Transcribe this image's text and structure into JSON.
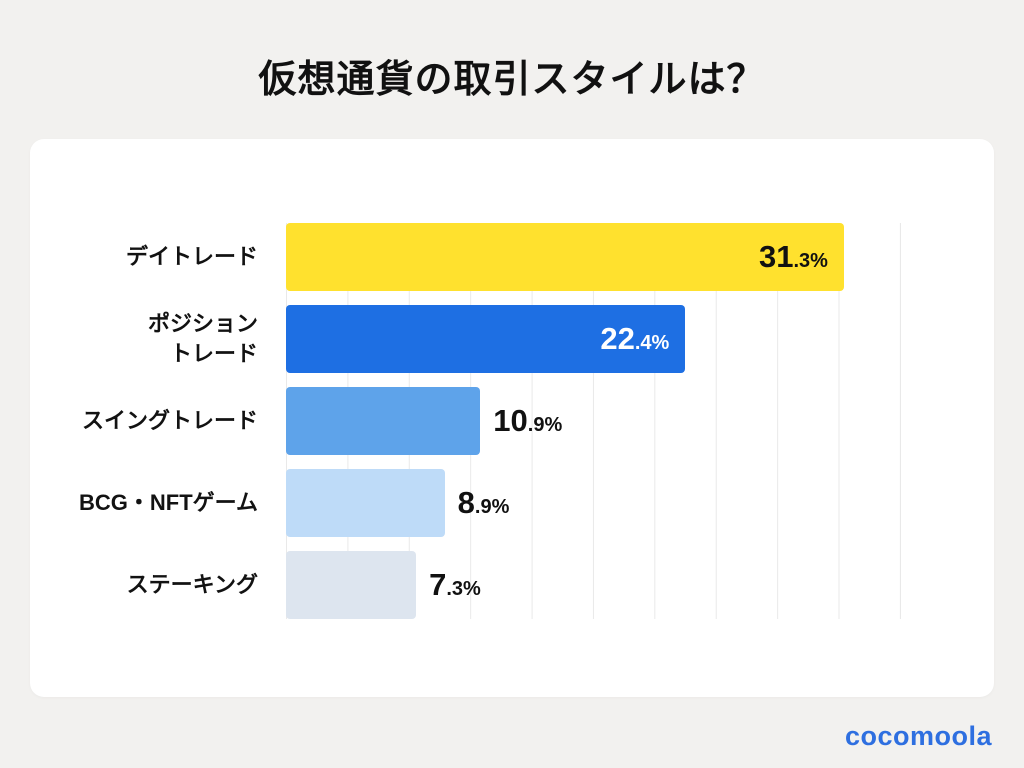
{
  "page": {
    "title": "仮想通貨の取引スタイルは？"
  },
  "brand": {
    "logo_text": "cocomoola",
    "logo_color": "#2e6fe0"
  },
  "chart_data": {
    "type": "bar",
    "orientation": "horizontal",
    "title": "仮想通貨の取引スタイルは？",
    "categories": [
      "デイトレード",
      "ポジション\nトレード",
      "スイングトレード",
      "BCG・NFTゲーム",
      "ステーキング"
    ],
    "values": [
      31.3,
      22.4,
      10.9,
      8.9,
      7.3
    ],
    "unit": "%",
    "value_labels": [
      {
        "main": "31",
        "sub": ".3%"
      },
      {
        "main": "22",
        "sub": ".4%"
      },
      {
        "main": "10",
        "sub": ".9%"
      },
      {
        "main": "8",
        "sub": ".9%"
      },
      {
        "main": "7",
        "sub": ".3%"
      }
    ],
    "bar_colors": [
      "#ffe12e",
      "#1e6fe3",
      "#5ea3ea",
      "#bedbf8",
      "#dde5ef"
    ],
    "value_label_inside": [
      true,
      true,
      false,
      false,
      false
    ],
    "value_label_colors": [
      "#111111",
      "#ffffff",
      "#111111",
      "#111111",
      "#111111"
    ],
    "xlim": [
      0,
      34.5
    ],
    "grid": true,
    "gridline_count": 10,
    "legend": "none"
  }
}
